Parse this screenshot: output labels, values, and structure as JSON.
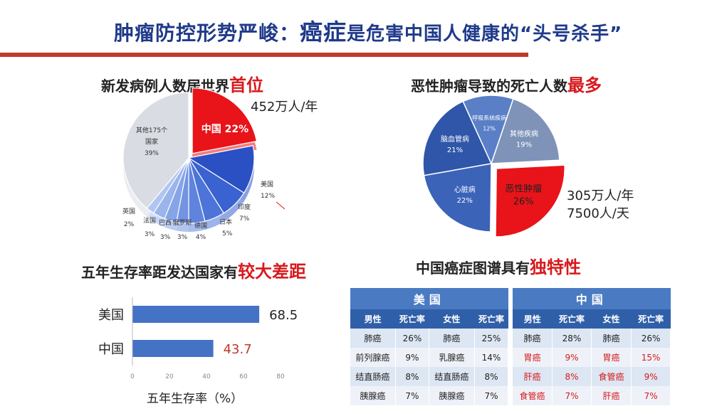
{
  "header": {
    "title_part1": "肿瘤防控形势严峻：",
    "title_highlight": "癌症",
    "title_part2": "是危害中国人健康的“头号杀手”"
  },
  "incidence": {
    "heading_prefix": "新发病例人数居世界",
    "heading_highlight": "首位",
    "callout": "452万人/年"
  },
  "mortality": {
    "heading_prefix": "恶性肿瘤导致的死亡人数",
    "heading_highlight": "最多",
    "callout_line1": "305万人/年",
    "callout_line2": "7500人/天"
  },
  "survival": {
    "heading_prefix": "五年生存率距发达国家有",
    "heading_highlight": "较大差距",
    "axis_title": "五年生存率（%）"
  },
  "spectrum": {
    "heading_prefix": "中国癌症图谱具有",
    "heading_highlight": "独特性"
  },
  "tables": {
    "us": {
      "band": "美国",
      "headers": [
        "男性",
        "死亡率",
        "女性",
        "死亡率"
      ],
      "rows": [
        [
          "肺癌",
          "26%",
          "肺癌",
          "25%"
        ],
        [
          "前列腺癌",
          "9%",
          "乳腺癌",
          "14%"
        ],
        [
          "结直肠癌",
          "8%",
          "结直肠癌",
          "8%"
        ],
        [
          "胰腺癌",
          "7%",
          "胰腺癌",
          "7%"
        ]
      ]
    },
    "cn": {
      "band": "中国",
      "headers": [
        "男性",
        "死亡率",
        "女性",
        "死亡率"
      ],
      "rows": [
        [
          "肺癌",
          "28%",
          "肺癌",
          "26%"
        ],
        [
          "胃癌",
          "9%",
          "胃癌",
          "15%"
        ],
        [
          "肝癌",
          "8%",
          "食管癌",
          "9%"
        ],
        [
          "食管癌",
          "7%",
          "肝癌",
          "7%"
        ]
      ]
    }
  },
  "colors": {
    "china_slice": "#e8141a",
    "others_slice": "#d9dce2",
    "blue_dark": "#2d55c8",
    "blue_mid": "#4f73d6",
    "blue_light": "#8aa8e6",
    "bar": "#4472c4",
    "china_value": "#c0392b"
  },
  "chart_data": [
    {
      "type": "pie",
      "title": "",
      "slices": [
        {
          "label": "中国",
          "value": 22
        },
        {
          "label": "美国",
          "value": 12
        },
        {
          "label": "印度",
          "value": 7
        },
        {
          "label": "日本",
          "value": 5
        },
        {
          "label": "德国",
          "value": 4
        },
        {
          "label": "俄罗斯",
          "value": 3
        },
        {
          "label": "巴西",
          "value": 3
        },
        {
          "label": "法国",
          "value": 3
        },
        {
          "label": "英国",
          "value": 2
        },
        {
          "label": "其他175个国家",
          "value": 39
        }
      ]
    },
    {
      "type": "pie",
      "title": "",
      "slices": [
        {
          "label": "恶性肿瘤",
          "value": 26
        },
        {
          "label": "心脏病",
          "value": 22
        },
        {
          "label": "脑血管病",
          "value": 21
        },
        {
          "label": "呼吸系统疾病",
          "value": 12
        },
        {
          "label": "其他疾病",
          "value": 19
        }
      ]
    },
    {
      "type": "bar",
      "orientation": "horizontal",
      "categories": [
        "美国",
        "中国"
      ],
      "values": [
        68.5,
        43.7
      ],
      "xlim": [
        0,
        80
      ],
      "xticks": [
        0,
        20,
        40,
        60,
        80
      ],
      "xlabel": "五年生存率（%）",
      "grid": false
    }
  ]
}
